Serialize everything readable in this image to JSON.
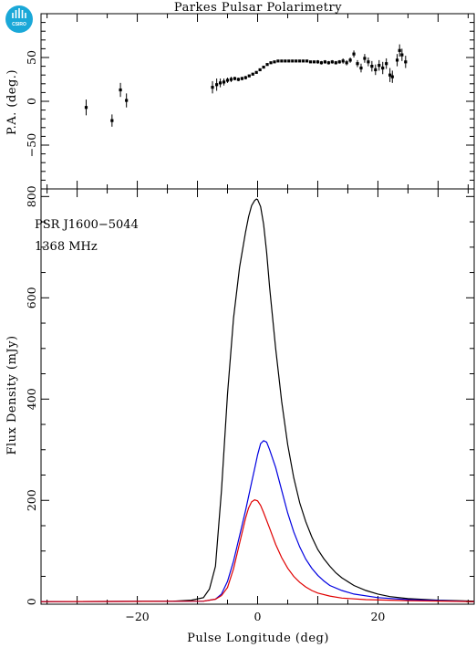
{
  "title": "Parkes Pulsar Polarimetry",
  "logo": "CSIRO",
  "colors": {
    "total": "#000000",
    "linear": "#e00000",
    "circular": "#0000e0",
    "frame": "#000000"
  },
  "chart_data": [
    {
      "type": "scatter",
      "panel": "top",
      "ylabel": "P.A. (deg.)",
      "xlim": [
        -36,
        36
      ],
      "ylim": [
        -100,
        100
      ],
      "yticks": [
        -50,
        0,
        50
      ],
      "xticks": [
        -20,
        0,
        20
      ],
      "points": [
        [
          -28.5,
          -7,
          9
        ],
        [
          -24.2,
          -22,
          7
        ],
        [
          -22.8,
          13,
          8
        ],
        [
          -21.8,
          1,
          8
        ],
        [
          -7.5,
          16,
          7
        ],
        [
          -6.8,
          19,
          7
        ],
        [
          -6.2,
          21,
          5
        ],
        [
          -5.6,
          22,
          4
        ],
        [
          -5.0,
          24,
          3
        ],
        [
          -4.4,
          25,
          3
        ],
        [
          -3.8,
          26,
          2
        ],
        [
          -3.2,
          25,
          2
        ],
        [
          -2.6,
          26,
          2
        ],
        [
          -2.0,
          27,
          2
        ],
        [
          -1.4,
          29,
          1
        ],
        [
          -0.8,
          31,
          1
        ],
        [
          -0.2,
          33,
          1
        ],
        [
          0.4,
          36,
          1
        ],
        [
          1.0,
          39,
          1
        ],
        [
          1.6,
          42,
          1
        ],
        [
          2.2,
          44,
          1
        ],
        [
          2.8,
          45,
          1
        ],
        [
          3.4,
          46,
          1
        ],
        [
          4.0,
          46,
          1
        ],
        [
          4.6,
          46,
          1
        ],
        [
          5.2,
          46,
          1
        ],
        [
          5.8,
          46,
          1
        ],
        [
          6.4,
          46,
          1
        ],
        [
          7.0,
          46,
          1
        ],
        [
          7.6,
          46,
          1
        ],
        [
          8.2,
          46,
          1
        ],
        [
          8.8,
          45,
          1
        ],
        [
          9.4,
          45,
          1
        ],
        [
          10.0,
          45,
          2
        ],
        [
          10.6,
          44,
          2
        ],
        [
          11.2,
          45,
          2
        ],
        [
          11.8,
          44,
          2
        ],
        [
          12.4,
          45,
          2
        ],
        [
          13.0,
          44,
          2
        ],
        [
          13.6,
          45,
          2
        ],
        [
          14.2,
          46,
          3
        ],
        [
          14.8,
          44,
          3
        ],
        [
          15.4,
          47,
          3
        ],
        [
          16.0,
          54,
          4
        ],
        [
          16.6,
          43,
          4
        ],
        [
          17.2,
          38,
          5
        ],
        [
          17.8,
          49,
          5
        ],
        [
          18.4,
          45,
          5
        ],
        [
          19.0,
          40,
          6
        ],
        [
          19.6,
          36,
          6
        ],
        [
          20.2,
          41,
          6
        ],
        [
          20.8,
          38,
          7
        ],
        [
          21.4,
          43,
          6
        ],
        [
          22.0,
          30,
          8
        ],
        [
          22.4,
          28,
          7
        ],
        [
          23.2,
          47,
          7
        ],
        [
          23.6,
          58,
          7
        ],
        [
          24.0,
          53,
          7
        ],
        [
          24.6,
          45,
          7
        ]
      ]
    },
    {
      "type": "line",
      "panel": "bottom",
      "xlabel": "Pulse Longitude (deg)",
      "ylabel": "Flux Density (mJy)",
      "xlim": [
        -36,
        36
      ],
      "ylim": [
        -5,
        815
      ],
      "xticks": [
        -20,
        0,
        20
      ],
      "yticks": [
        0,
        200,
        400,
        600,
        800
      ],
      "annotations": [
        "PSR J1600−5044",
        "1368 MHz"
      ],
      "series": [
        {
          "name": "",
          "color": "#000000",
          "x": [
            -36,
            -14,
            -11,
            -9,
            -8,
            -7,
            -6,
            -5,
            -4,
            -3,
            -2,
            -1.5,
            -1,
            -0.5,
            -0.2,
            0,
            0.5,
            1,
            1.5,
            2,
            3,
            4,
            5,
            6,
            7,
            8,
            9,
            10,
            11,
            12,
            13,
            14,
            16,
            18,
            20,
            22,
            25,
            30,
            36
          ],
          "y": [
            0,
            1,
            3,
            8,
            25,
            70,
            220,
            410,
            560,
            660,
            730,
            760,
            782,
            792,
            795,
            794,
            780,
            745,
            690,
            620,
            500,
            395,
            310,
            245,
            195,
            158,
            128,
            103,
            85,
            70,
            57,
            47,
            32,
            22,
            15,
            10,
            6,
            3,
            1
          ]
        },
        {
          "name": "",
          "color": "#0000e0",
          "x": [
            -36,
            -9,
            -7,
            -6,
            -5,
            -4,
            -3,
            -2,
            -1,
            -0.5,
            0,
            0.5,
            1,
            1.5,
            2,
            3,
            4,
            5,
            6,
            7,
            8,
            9,
            10,
            11,
            12,
            14,
            16,
            20,
            25,
            36
          ],
          "y": [
            0,
            1,
            5,
            15,
            40,
            80,
            130,
            180,
            235,
            262,
            290,
            312,
            318,
            315,
            300,
            265,
            220,
            175,
            138,
            108,
            84,
            66,
            52,
            41,
            32,
            22,
            15,
            8,
            4,
            0
          ]
        },
        {
          "name": "",
          "color": "#e00000",
          "x": [
            -36,
            -9,
            -7,
            -6,
            -5,
            -4,
            -3,
            -2,
            -1.5,
            -1,
            -0.5,
            0,
            0.5,
            1,
            2,
            3,
            4,
            5,
            6,
            7,
            8,
            9,
            10,
            12,
            14,
            18,
            25,
            36
          ],
          "y": [
            0,
            1,
            5,
            12,
            28,
            65,
            115,
            165,
            185,
            197,
            201,
            199,
            190,
            176,
            145,
            113,
            87,
            66,
            50,
            38,
            29,
            22,
            17,
            11,
            7,
            4,
            2,
            0
          ]
        }
      ]
    }
  ]
}
